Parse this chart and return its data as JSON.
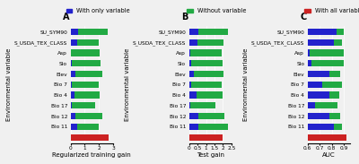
{
  "categories": [
    "SU_SYM90",
    "S_USDA_TEX_CLASS",
    "Asp",
    "Slo",
    "Elev",
    "Bio 7",
    "Bio 4",
    "Bio 17",
    "Bio 12",
    "Bio 11"
  ],
  "A_blue": [
    0.55,
    0.45,
    0.05,
    0.12,
    0.35,
    0.12,
    0.3,
    0.08,
    0.35,
    0.45
  ],
  "A_green": [
    2.1,
    1.55,
    2.0,
    2.0,
    1.9,
    1.9,
    1.75,
    1.65,
    1.9,
    1.55
  ],
  "A_red": 2.7,
  "A_xlabel": "Regularized training gain",
  "A_xlim": [
    0,
    3
  ],
  "A_xticks": [
    0,
    1,
    2,
    3
  ],
  "B_blue": [
    0.55,
    0.5,
    0.05,
    0.15,
    0.3,
    0.15,
    0.45,
    0.1,
    0.55,
    0.55
  ],
  "B_green": [
    1.75,
    1.55,
    1.85,
    1.85,
    1.75,
    1.75,
    1.5,
    1.45,
    1.55,
    1.75
  ],
  "B_red": 2.0,
  "B_xlabel": "Test gain",
  "B_xlim": [
    0,
    2.5
  ],
  "B_xticks": [
    0,
    0.5,
    1,
    1.5,
    2,
    2.5
  ],
  "C_blue": [
    0.84,
    0.82,
    0.62,
    0.63,
    0.78,
    0.72,
    0.78,
    0.66,
    0.78,
    0.82
  ],
  "C_green": [
    0.9,
    0.88,
    0.9,
    0.9,
    0.87,
    0.88,
    0.86,
    0.85,
    0.87,
    0.88
  ],
  "C_red": 0.92,
  "C_xlabel": "AUC",
  "C_xlim": [
    0.6,
    0.95
  ],
  "C_xticks": [
    0.6,
    0.7,
    0.8,
    0.9
  ],
  "blue_color": "#2222cc",
  "green_color": "#22aa44",
  "red_color": "#cc2222",
  "bg_color": "#f0f0f0",
  "legend_A": "With only variable",
  "legend_B": "Without variable",
  "legend_C": "With all variables",
  "ylabel": "Environmental variable",
  "panel_labels": [
    "A",
    "B",
    "C"
  ],
  "bar_height": 0.6,
  "font_size": 5.0,
  "tick_font_size": 4.2
}
